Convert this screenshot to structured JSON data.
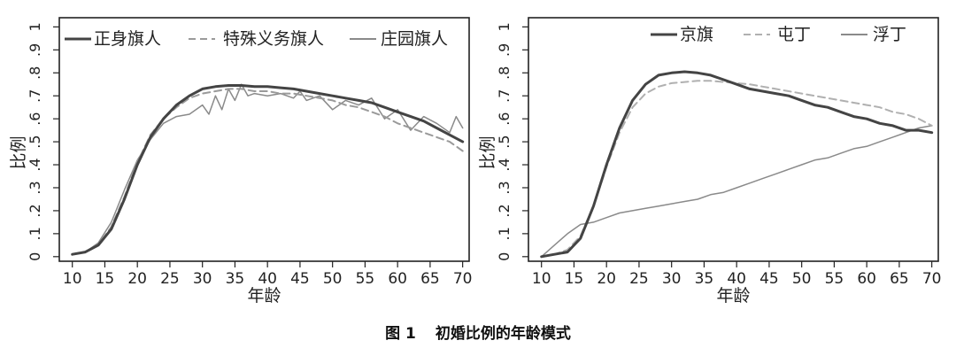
{
  "caption": {
    "number": "图 1",
    "title": "初婚比例的年龄模式"
  },
  "chart_data": [
    {
      "type": "line",
      "xlabel": "年龄",
      "ylabel": "比例",
      "xlim": [
        8,
        71
      ],
      "ylim": [
        -0.02,
        1.04
      ],
      "xticks": [
        10,
        15,
        20,
        25,
        30,
        35,
        40,
        45,
        50,
        55,
        60,
        65,
        70
      ],
      "xtick_labels": [
        "10",
        "15",
        "20",
        "25",
        "30",
        "35",
        "40",
        "45",
        "50",
        "55",
        "60",
        "65",
        "70"
      ],
      "yticks": [
        0,
        0.1,
        0.2,
        0.3,
        0.4,
        0.5,
        0.6,
        0.7,
        0.8,
        0.9,
        1
      ],
      "ytick_labels": [
        "0",
        ".1",
        ".2",
        ".3",
        ".4",
        ".5",
        ".6",
        ".7",
        ".8",
        ".9",
        "1"
      ],
      "legend": "top",
      "series": [
        {
          "name": "正身旗人",
          "color": "#444444",
          "style": "solid",
          "width": 3,
          "x": [
            10,
            12,
            14,
            16,
            18,
            20,
            22,
            24,
            26,
            28,
            30,
            32,
            34,
            36,
            38,
            40,
            42,
            44,
            46,
            48,
            50,
            52,
            54,
            56,
            58,
            60,
            62,
            64,
            66,
            68,
            70
          ],
          "y": [
            0.01,
            0.02,
            0.05,
            0.12,
            0.25,
            0.4,
            0.52,
            0.6,
            0.66,
            0.7,
            0.73,
            0.74,
            0.745,
            0.745,
            0.74,
            0.74,
            0.735,
            0.73,
            0.72,
            0.71,
            0.7,
            0.69,
            0.68,
            0.67,
            0.65,
            0.63,
            0.61,
            0.59,
            0.56,
            0.53,
            0.5
          ]
        },
        {
          "name": "特殊义务旗人",
          "color": "#9a9a9a",
          "style": "dashed",
          "width": 2,
          "x": [
            10,
            12,
            14,
            16,
            18,
            20,
            22,
            24,
            26,
            28,
            30,
            32,
            34,
            36,
            38,
            40,
            42,
            44,
            46,
            48,
            50,
            52,
            54,
            56,
            58,
            60,
            62,
            64,
            66,
            68,
            70
          ],
          "y": [
            0.01,
            0.02,
            0.05,
            0.13,
            0.26,
            0.41,
            0.53,
            0.6,
            0.65,
            0.69,
            0.71,
            0.72,
            0.73,
            0.73,
            0.72,
            0.72,
            0.71,
            0.71,
            0.7,
            0.69,
            0.68,
            0.66,
            0.65,
            0.63,
            0.61,
            0.58,
            0.56,
            0.54,
            0.52,
            0.5,
            0.46
          ]
        },
        {
          "name": "庄园旗人",
          "color": "#8a8a8a",
          "style": "solid",
          "width": 1.5,
          "x": [
            10,
            12,
            14,
            16,
            18,
            20,
            22,
            24,
            26,
            28,
            30,
            31,
            32,
            33,
            34,
            35,
            36,
            37,
            38,
            40,
            42,
            44,
            45,
            46,
            48,
            50,
            52,
            54,
            56,
            58,
            60,
            62,
            64,
            66,
            68,
            69,
            70
          ],
          "y": [
            0.01,
            0.02,
            0.06,
            0.15,
            0.29,
            0.42,
            0.51,
            0.58,
            0.61,
            0.62,
            0.66,
            0.62,
            0.7,
            0.64,
            0.73,
            0.68,
            0.75,
            0.7,
            0.71,
            0.7,
            0.71,
            0.69,
            0.72,
            0.68,
            0.7,
            0.64,
            0.68,
            0.66,
            0.69,
            0.6,
            0.64,
            0.55,
            0.61,
            0.58,
            0.54,
            0.61,
            0.56
          ]
        }
      ]
    },
    {
      "type": "line",
      "xlabel": "年龄",
      "ylabel": "比例",
      "xlim": [
        8,
        71
      ],
      "ylim": [
        -0.02,
        1.04
      ],
      "xticks": [
        10,
        15,
        20,
        25,
        30,
        35,
        40,
        45,
        50,
        55,
        60,
        65,
        70
      ],
      "xtick_labels": [
        "10",
        "15",
        "20",
        "25",
        "30",
        "35",
        "40",
        "45",
        "50",
        "55",
        "60",
        "65",
        "70"
      ],
      "yticks": [
        0,
        0.1,
        0.2,
        0.3,
        0.4,
        0.5,
        0.6,
        0.7,
        0.8,
        0.9,
        1
      ],
      "ytick_labels": [
        "0",
        ".1",
        ".2",
        ".3",
        ".4",
        ".5",
        ".6",
        ".7",
        ".8",
        ".9",
        "1"
      ],
      "legend": "top",
      "series": [
        {
          "name": "京旗",
          "color": "#444444",
          "style": "solid",
          "width": 3,
          "x": [
            10,
            12,
            14,
            16,
            18,
            20,
            22,
            24,
            26,
            28,
            30,
            32,
            34,
            36,
            38,
            40,
            42,
            44,
            46,
            48,
            50,
            52,
            54,
            56,
            58,
            60,
            62,
            64,
            66,
            68,
            70
          ],
          "y": [
            0.0,
            0.01,
            0.02,
            0.08,
            0.22,
            0.4,
            0.56,
            0.68,
            0.75,
            0.79,
            0.8,
            0.805,
            0.8,
            0.79,
            0.77,
            0.75,
            0.73,
            0.72,
            0.71,
            0.7,
            0.68,
            0.66,
            0.65,
            0.63,
            0.61,
            0.6,
            0.58,
            0.57,
            0.55,
            0.55,
            0.54
          ]
        },
        {
          "name": "屯丁",
          "color": "#b0b0b0",
          "style": "dashed",
          "width": 2,
          "x": [
            10,
            12,
            14,
            16,
            18,
            20,
            22,
            24,
            26,
            28,
            30,
            32,
            34,
            36,
            38,
            40,
            42,
            44,
            46,
            48,
            50,
            52,
            54,
            56,
            58,
            60,
            62,
            64,
            66,
            68,
            70
          ],
          "y": [
            0.0,
            0.01,
            0.03,
            0.09,
            0.22,
            0.39,
            0.54,
            0.65,
            0.71,
            0.74,
            0.755,
            0.76,
            0.765,
            0.765,
            0.76,
            0.755,
            0.75,
            0.74,
            0.73,
            0.72,
            0.71,
            0.7,
            0.69,
            0.68,
            0.67,
            0.66,
            0.65,
            0.63,
            0.62,
            0.6,
            0.57
          ]
        },
        {
          "name": "浮丁",
          "color": "#8a8a8a",
          "style": "solid",
          "width": 1.5,
          "x": [
            10,
            12,
            14,
            16,
            18,
            20,
            22,
            24,
            26,
            28,
            30,
            32,
            34,
            36,
            38,
            40,
            42,
            44,
            46,
            48,
            50,
            52,
            54,
            56,
            58,
            60,
            62,
            64,
            66,
            68,
            70
          ],
          "y": [
            0.0,
            0.05,
            0.1,
            0.14,
            0.15,
            0.17,
            0.19,
            0.2,
            0.21,
            0.22,
            0.23,
            0.24,
            0.25,
            0.27,
            0.28,
            0.3,
            0.32,
            0.34,
            0.36,
            0.38,
            0.4,
            0.42,
            0.43,
            0.45,
            0.47,
            0.48,
            0.5,
            0.52,
            0.54,
            0.56,
            0.57
          ]
        }
      ]
    }
  ]
}
